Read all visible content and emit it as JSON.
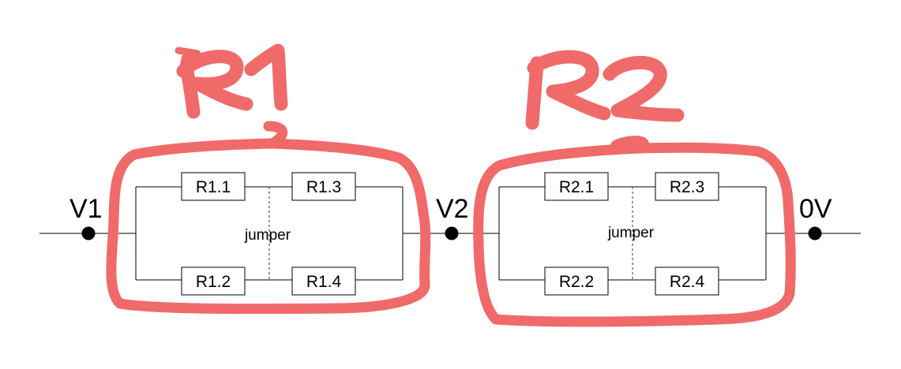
{
  "nodes": {
    "v1": "V1",
    "v2": "V2",
    "zero": "0V"
  },
  "groups": [
    {
      "id": "R1",
      "annotation": "R1",
      "resistors": [
        "R1.1",
        "R1.3",
        "R1.2",
        "R1.4"
      ],
      "jumper_label": "jumper"
    },
    {
      "id": "R2",
      "annotation": "R2",
      "resistors": [
        "R2.1",
        "R2.3",
        "R2.2",
        "R2.4"
      ],
      "jumper_label": "jumper"
    }
  ],
  "colors": {
    "annotation": "#f06a6a",
    "wire": "#000000",
    "background": "#ffffff"
  }
}
